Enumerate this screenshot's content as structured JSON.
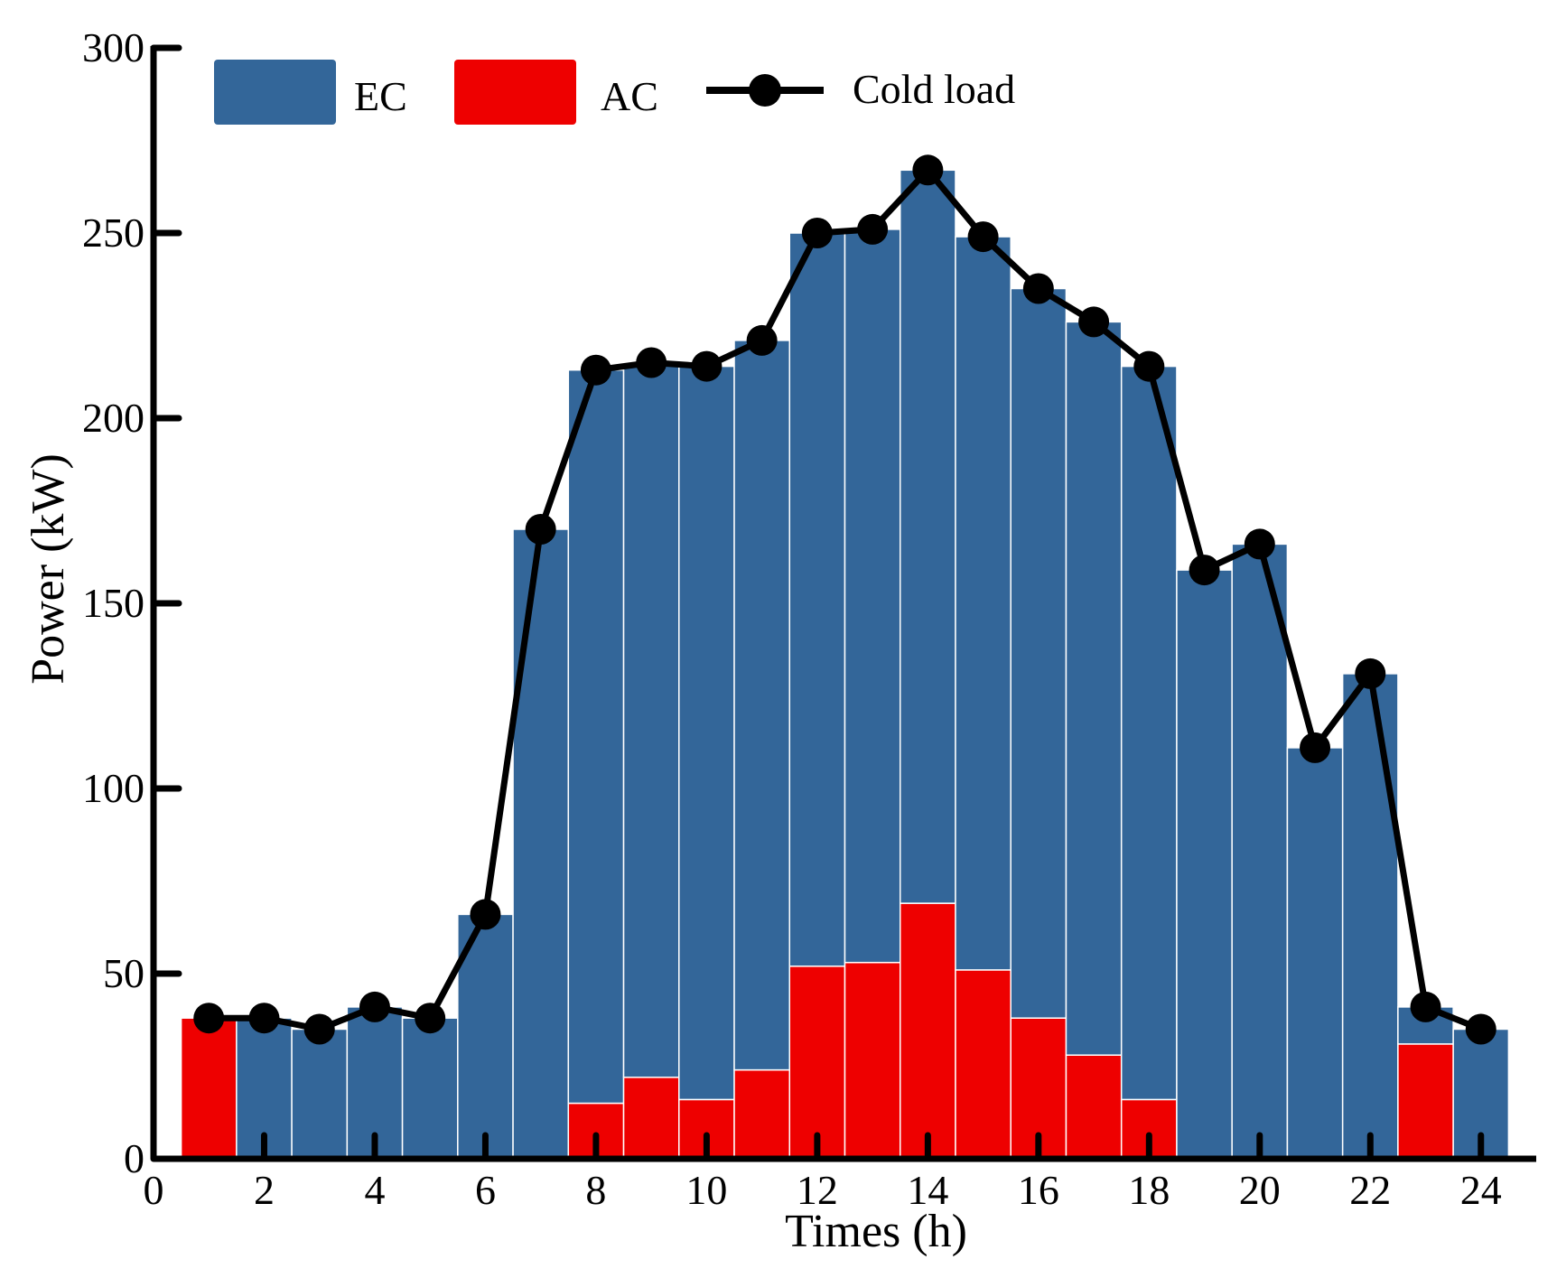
{
  "colors": {
    "ec": "#336699",
    "ac": "#ee0000",
    "cold_load": "#000000",
    "axis": "#000000",
    "bar_gap": "#ffffff"
  },
  "legend": {
    "ec_label": "EC",
    "ac_label": "AC",
    "cold_load_label": "Cold load"
  },
  "chart_data": {
    "type": "bar",
    "stacked": true,
    "title": "",
    "xlabel": "Times (h)",
    "ylabel": "Power (kW)",
    "xlim": [
      0,
      25
    ],
    "ylim": [
      0,
      300
    ],
    "xticks": [
      0,
      2,
      4,
      6,
      8,
      10,
      12,
      14,
      16,
      18,
      20,
      22,
      24
    ],
    "yticks": [
      0,
      50,
      100,
      150,
      200,
      250,
      300
    ],
    "grid": false,
    "legend_position": "top",
    "x": [
      1,
      2,
      3,
      4,
      5,
      6,
      7,
      8,
      9,
      10,
      11,
      12,
      13,
      14,
      15,
      16,
      17,
      18,
      19,
      20,
      21,
      22,
      23,
      24
    ],
    "series": [
      {
        "name": "AC",
        "kind": "bar",
        "values": [
          38,
          0,
          0,
          0,
          0,
          0,
          0,
          15,
          22,
          16,
          24,
          52,
          53,
          69,
          51,
          38,
          28,
          16,
          0,
          0,
          0,
          0,
          31,
          0
        ]
      },
      {
        "name": "EC",
        "kind": "bar",
        "values": [
          0,
          38,
          35,
          41,
          38,
          66,
          170,
          198,
          193,
          198,
          197,
          198,
          198,
          198,
          198,
          197,
          198,
          198,
          159,
          166,
          111,
          131,
          10,
          35
        ]
      },
      {
        "name": "Cold load",
        "kind": "line",
        "values": [
          38,
          38,
          35,
          41,
          38,
          66,
          170,
          213,
          215,
          214,
          221,
          250,
          251,
          267,
          249,
          235,
          226,
          214,
          159,
          166,
          111,
          131,
          41,
          35
        ]
      }
    ]
  }
}
